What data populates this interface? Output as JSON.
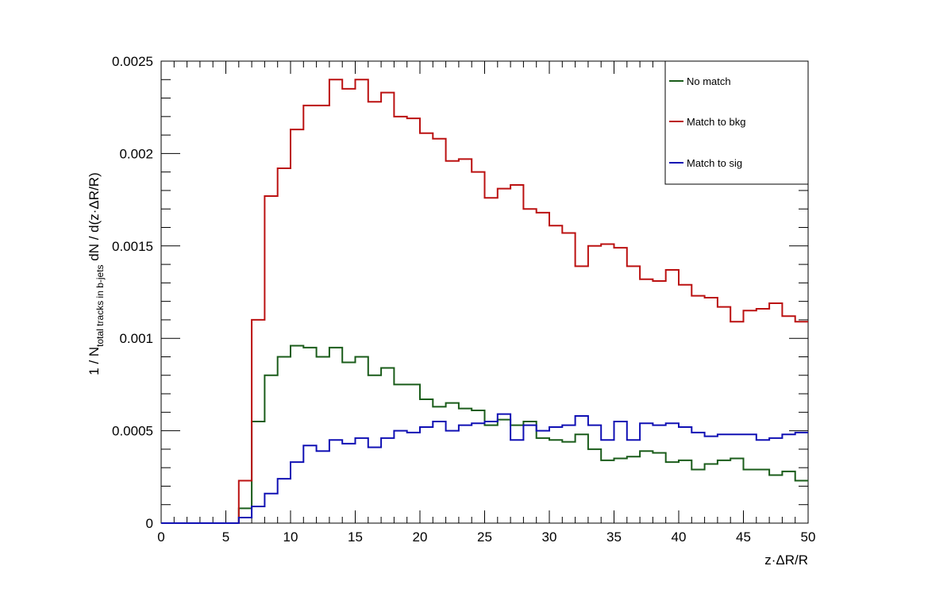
{
  "chart_data": {
    "type": "line",
    "style": "step-histogram",
    "xlabel": "z·ΔR/R",
    "ylabel": {
      "prefix": "1 / N",
      "subscript": "total tracks in b-jets",
      "suffix": " dN / d(z·ΔR/R)"
    },
    "xlim": [
      0,
      50
    ],
    "ylim": [
      0,
      0.0025
    ],
    "x_ticks": [
      0,
      5,
      10,
      15,
      20,
      25,
      30,
      35,
      40,
      45,
      50
    ],
    "x_tick_labels": [
      "0",
      "5",
      "10",
      "15",
      "20",
      "25",
      "30",
      "35",
      "40",
      "45",
      "50"
    ],
    "y_ticks": [
      0,
      0.0005,
      0.001,
      0.0015,
      0.002,
      0.0025
    ],
    "y_tick_labels": [
      "0",
      "0.0005",
      "0.001",
      "0.0015",
      "0.002",
      "0.0025"
    ],
    "grid": false,
    "legend_position": "top-right",
    "bin_edges_start": 0,
    "bin_width": 1,
    "series": [
      {
        "name": "No match",
        "color": "#1a5c1a",
        "values": [
          0,
          0,
          0,
          0,
          0,
          0,
          8e-05,
          0.00055,
          0.0008,
          0.0009,
          0.00096,
          0.00095,
          0.0009,
          0.00095,
          0.00087,
          0.0009,
          0.0008,
          0.00084,
          0.00075,
          0.00075,
          0.00067,
          0.00063,
          0.00065,
          0.00062,
          0.00061,
          0.00053,
          0.00056,
          0.00053,
          0.00055,
          0.00046,
          0.00045,
          0.00044,
          0.00048,
          0.0004,
          0.00034,
          0.00035,
          0.00036,
          0.00039,
          0.00038,
          0.00033,
          0.00034,
          0.00029,
          0.00032,
          0.00034,
          0.00035,
          0.00029,
          0.00029,
          0.00026,
          0.00028,
          0.00023
        ]
      },
      {
        "name": "Match to bkg",
        "color": "#bb1111",
        "values": [
          0,
          0,
          0,
          0,
          0,
          0,
          0.00023,
          0.0011,
          0.00177,
          0.00192,
          0.00213,
          0.00226,
          0.00226,
          0.0024,
          0.00235,
          0.0024,
          0.00228,
          0.00233,
          0.0022,
          0.00219,
          0.00211,
          0.00208,
          0.00196,
          0.00197,
          0.0019,
          0.00176,
          0.00181,
          0.00183,
          0.0017,
          0.00168,
          0.00161,
          0.00157,
          0.00139,
          0.0015,
          0.00151,
          0.00149,
          0.00139,
          0.00132,
          0.00131,
          0.00137,
          0.00129,
          0.00123,
          0.00122,
          0.00117,
          0.00109,
          0.00115,
          0.00116,
          0.00119,
          0.00112,
          0.00109
        ]
      },
      {
        "name": "Match to sig",
        "color": "#1010b4",
        "values": [
          0,
          0,
          0,
          0,
          0,
          0,
          3e-05,
          9e-05,
          0.00016,
          0.00024,
          0.00033,
          0.00042,
          0.00039,
          0.00045,
          0.00043,
          0.00046,
          0.00041,
          0.00046,
          0.0005,
          0.00049,
          0.00052,
          0.00055,
          0.0005,
          0.00053,
          0.00054,
          0.00055,
          0.00059,
          0.00045,
          0.00053,
          0.0005,
          0.00052,
          0.00053,
          0.00058,
          0.00053,
          0.00045,
          0.00055,
          0.00045,
          0.00054,
          0.00053,
          0.00054,
          0.00052,
          0.00049,
          0.00047,
          0.00048,
          0.00048,
          0.00048,
          0.00045,
          0.00046,
          0.00048,
          0.00049
        ]
      }
    ]
  }
}
